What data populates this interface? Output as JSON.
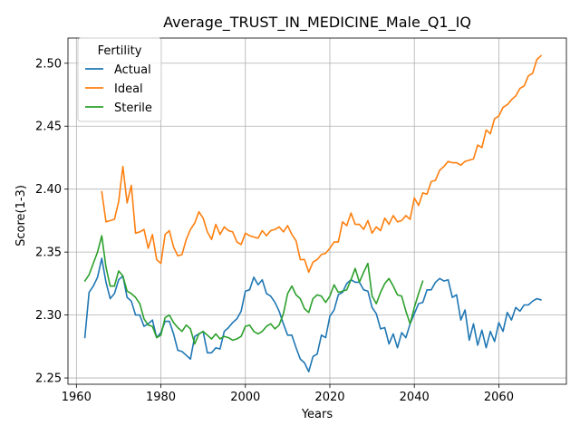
{
  "chart_data": {
    "type": "line",
    "title": "Average_TRUST_IN_MEDICINE_Male_Q1_IQ",
    "xlabel": "Years",
    "ylabel": "Score(1-3)",
    "xlim": [
      1958,
      2076
    ],
    "ylim": [
      2.245,
      2.52
    ],
    "xticks": [
      1960,
      1980,
      2000,
      2020,
      2040,
      2060
    ],
    "yticks": [
      2.25,
      2.3,
      2.35,
      2.4,
      2.45,
      2.5
    ],
    "ytick_labels": [
      "2.25",
      "2.30",
      "2.35",
      "2.40",
      "2.45",
      "2.50"
    ],
    "grid": true,
    "legend": {
      "title": "Fertility",
      "position": "top-left"
    },
    "series": [
      {
        "name": "Actual",
        "color": "#1f77b4",
        "x": [
          1962,
          1963,
          1964,
          1965,
          1966,
          1967,
          1968,
          1969,
          1970,
          1971,
          1972,
          1973,
          1974,
          1975,
          1976,
          1977,
          1978,
          1979,
          1980,
          1981,
          1982,
          1983,
          1984,
          1985,
          1986,
          1987,
          1988,
          1989,
          1990,
          1991,
          1992,
          1993,
          1994,
          1995,
          1996,
          1997,
          1998,
          1999,
          2000,
          2001,
          2002,
          2003,
          2004,
          2005,
          2006,
          2007,
          2008,
          2009,
          2010,
          2011,
          2012,
          2013,
          2014,
          2015,
          2016,
          2017,
          2018,
          2019,
          2020,
          2021,
          2022,
          2023,
          2024,
          2025,
          2026,
          2027,
          2028,
          2029,
          2030,
          2031,
          2032,
          2033,
          2034,
          2035,
          2036,
          2037,
          2038,
          2039,
          2040,
          2041,
          2042,
          2043,
          2044,
          2045,
          2046,
          2047,
          2048,
          2049,
          2050,
          2051,
          2052,
          2053,
          2054,
          2055,
          2056,
          2057,
          2058,
          2059,
          2060,
          2061,
          2062,
          2063,
          2064,
          2065,
          2066,
          2067,
          2068,
          2069,
          2070
        ],
        "values": [
          2.282,
          2.318,
          2.323,
          2.33,
          2.345,
          2.326,
          2.313,
          2.317,
          2.328,
          2.331,
          2.314,
          2.311,
          2.3,
          2.3,
          2.291,
          2.293,
          2.296,
          2.282,
          2.286,
          2.295,
          2.295,
          2.285,
          2.272,
          2.271,
          2.268,
          2.265,
          2.283,
          2.285,
          2.287,
          2.27,
          2.27,
          2.274,
          2.273,
          2.287,
          2.29,
          2.294,
          2.297,
          2.303,
          2.319,
          2.32,
          2.33,
          2.324,
          2.328,
          2.317,
          2.315,
          2.31,
          2.303,
          2.293,
          2.284,
          2.284,
          2.274,
          2.265,
          2.262,
          2.255,
          2.267,
          2.269,
          2.284,
          2.282,
          2.299,
          2.304,
          2.316,
          2.318,
          2.325,
          2.328,
          2.326,
          2.326,
          2.32,
          2.319,
          2.306,
          2.301,
          2.289,
          2.29,
          2.277,
          2.285,
          2.274,
          2.286,
          2.282,
          2.293,
          2.301,
          2.309,
          2.31,
          2.32,
          2.32,
          2.326,
          2.329,
          2.327,
          2.328,
          2.314,
          2.316,
          2.296,
          2.304,
          2.28,
          2.293,
          2.276,
          2.288,
          2.274,
          2.287,
          2.279,
          2.294,
          2.287,
          2.302,
          2.296,
          2.306,
          2.303,
          2.308,
          2.308,
          2.311,
          2.313,
          2.312
        ]
      },
      {
        "name": "Ideal",
        "color": "#ff7f0e",
        "x": [
          1966,
          1967,
          1968,
          1969,
          1970,
          1971,
          1972,
          1973,
          1974,
          1975,
          1976,
          1977,
          1978,
          1979,
          1980,
          1981,
          1982,
          1983,
          1984,
          1985,
          1986,
          1987,
          1988,
          1989,
          1990,
          1991,
          1992,
          1993,
          1994,
          1995,
          1996,
          1997,
          1998,
          1999,
          2000,
          2001,
          2002,
          2003,
          2004,
          2005,
          2006,
          2007,
          2008,
          2009,
          2010,
          2011,
          2012,
          2013,
          2014,
          2015,
          2016,
          2017,
          2018,
          2019,
          2020,
          2021,
          2022,
          2023,
          2024,
          2025,
          2026,
          2027,
          2028,
          2029,
          2030,
          2031,
          2032,
          2033,
          2034,
          2035,
          2036,
          2037,
          2038,
          2039,
          2040,
          2041,
          2042,
          2043,
          2044,
          2045,
          2046,
          2047,
          2048,
          2049,
          2050,
          2051,
          2052,
          2053,
          2054,
          2055,
          2056,
          2057,
          2058,
          2059,
          2060,
          2061,
          2062,
          2063,
          2064,
          2065,
          2066,
          2067,
          2068,
          2069,
          2070
        ],
        "values": [
          2.398,
          2.374,
          2.375,
          2.376,
          2.39,
          2.418,
          2.389,
          2.403,
          2.365,
          2.366,
          2.368,
          2.353,
          2.364,
          2.344,
          2.341,
          2.364,
          2.367,
          2.354,
          2.347,
          2.348,
          2.36,
          2.368,
          2.373,
          2.382,
          2.377,
          2.366,
          2.36,
          2.372,
          2.364,
          2.37,
          2.367,
          2.366,
          2.358,
          2.356,
          2.365,
          2.363,
          2.362,
          2.361,
          2.367,
          2.363,
          2.367,
          2.368,
          2.37,
          2.366,
          2.371,
          2.364,
          2.359,
          2.344,
          2.344,
          2.334,
          2.342,
          2.344,
          2.348,
          2.349,
          2.353,
          2.358,
          2.358,
          2.374,
          2.371,
          2.381,
          2.372,
          2.372,
          2.368,
          2.375,
          2.365,
          2.37,
          2.367,
          2.377,
          2.372,
          2.379,
          2.374,
          2.375,
          2.379,
          2.376,
          2.393,
          2.387,
          2.397,
          2.396,
          2.406,
          2.407,
          2.415,
          2.418,
          2.422,
          2.421,
          2.421,
          2.419,
          2.422,
          2.423,
          2.424,
          2.435,
          2.433,
          2.447,
          2.444,
          2.456,
          2.458,
          2.465,
          2.467,
          2.471,
          2.474,
          2.48,
          2.482,
          2.49,
          2.492,
          2.503,
          2.506
        ]
      },
      {
        "name": "Sterile",
        "color": "#2ca02c",
        "x": [
          1962,
          1963,
          1964,
          1965,
          1966,
          1967,
          1968,
          1969,
          1970,
          1971,
          1972,
          1973,
          1974,
          1975,
          1976,
          1977,
          1978,
          1979,
          1980,
          1981,
          1982,
          1983,
          1984,
          1985,
          1986,
          1987,
          1988,
          1989,
          1990,
          1991,
          1992,
          1993,
          1994,
          1995,
          1996,
          1997,
          1998,
          1999,
          2000,
          2001,
          2002,
          2003,
          2004,
          2005,
          2006,
          2007,
          2008,
          2009,
          2010,
          2011,
          2012,
          2013,
          2014,
          2015,
          2016,
          2017,
          2018,
          2019,
          2020,
          2021,
          2022,
          2023,
          2024,
          2025,
          2026,
          2027,
          2028,
          2029,
          2030,
          2031,
          2032,
          2033,
          2034,
          2035,
          2036,
          2037,
          2038,
          2039,
          2040,
          2041,
          2042
        ],
        "values": [
          2.327,
          2.332,
          2.341,
          2.35,
          2.363,
          2.338,
          2.323,
          2.323,
          2.335,
          2.331,
          2.319,
          2.317,
          2.314,
          2.309,
          2.297,
          2.292,
          2.291,
          2.282,
          2.284,
          2.298,
          2.3,
          2.294,
          2.29,
          2.287,
          2.292,
          2.289,
          2.277,
          2.285,
          2.287,
          2.284,
          2.281,
          2.285,
          2.281,
          2.283,
          2.282,
          2.28,
          2.281,
          2.283,
          2.291,
          2.292,
          2.287,
          2.285,
          2.287,
          2.291,
          2.293,
          2.289,
          2.292,
          2.301,
          2.317,
          2.323,
          2.316,
          2.313,
          2.305,
          2.302,
          2.313,
          2.316,
          2.315,
          2.31,
          2.315,
          2.324,
          2.318,
          2.319,
          2.32,
          2.328,
          2.337,
          2.326,
          2.334,
          2.341,
          2.315,
          2.309,
          2.318,
          2.325,
          2.329,
          2.323,
          2.316,
          2.315,
          2.303,
          2.293,
          2.306,
          2.317,
          2.327
        ]
      }
    ]
  }
}
